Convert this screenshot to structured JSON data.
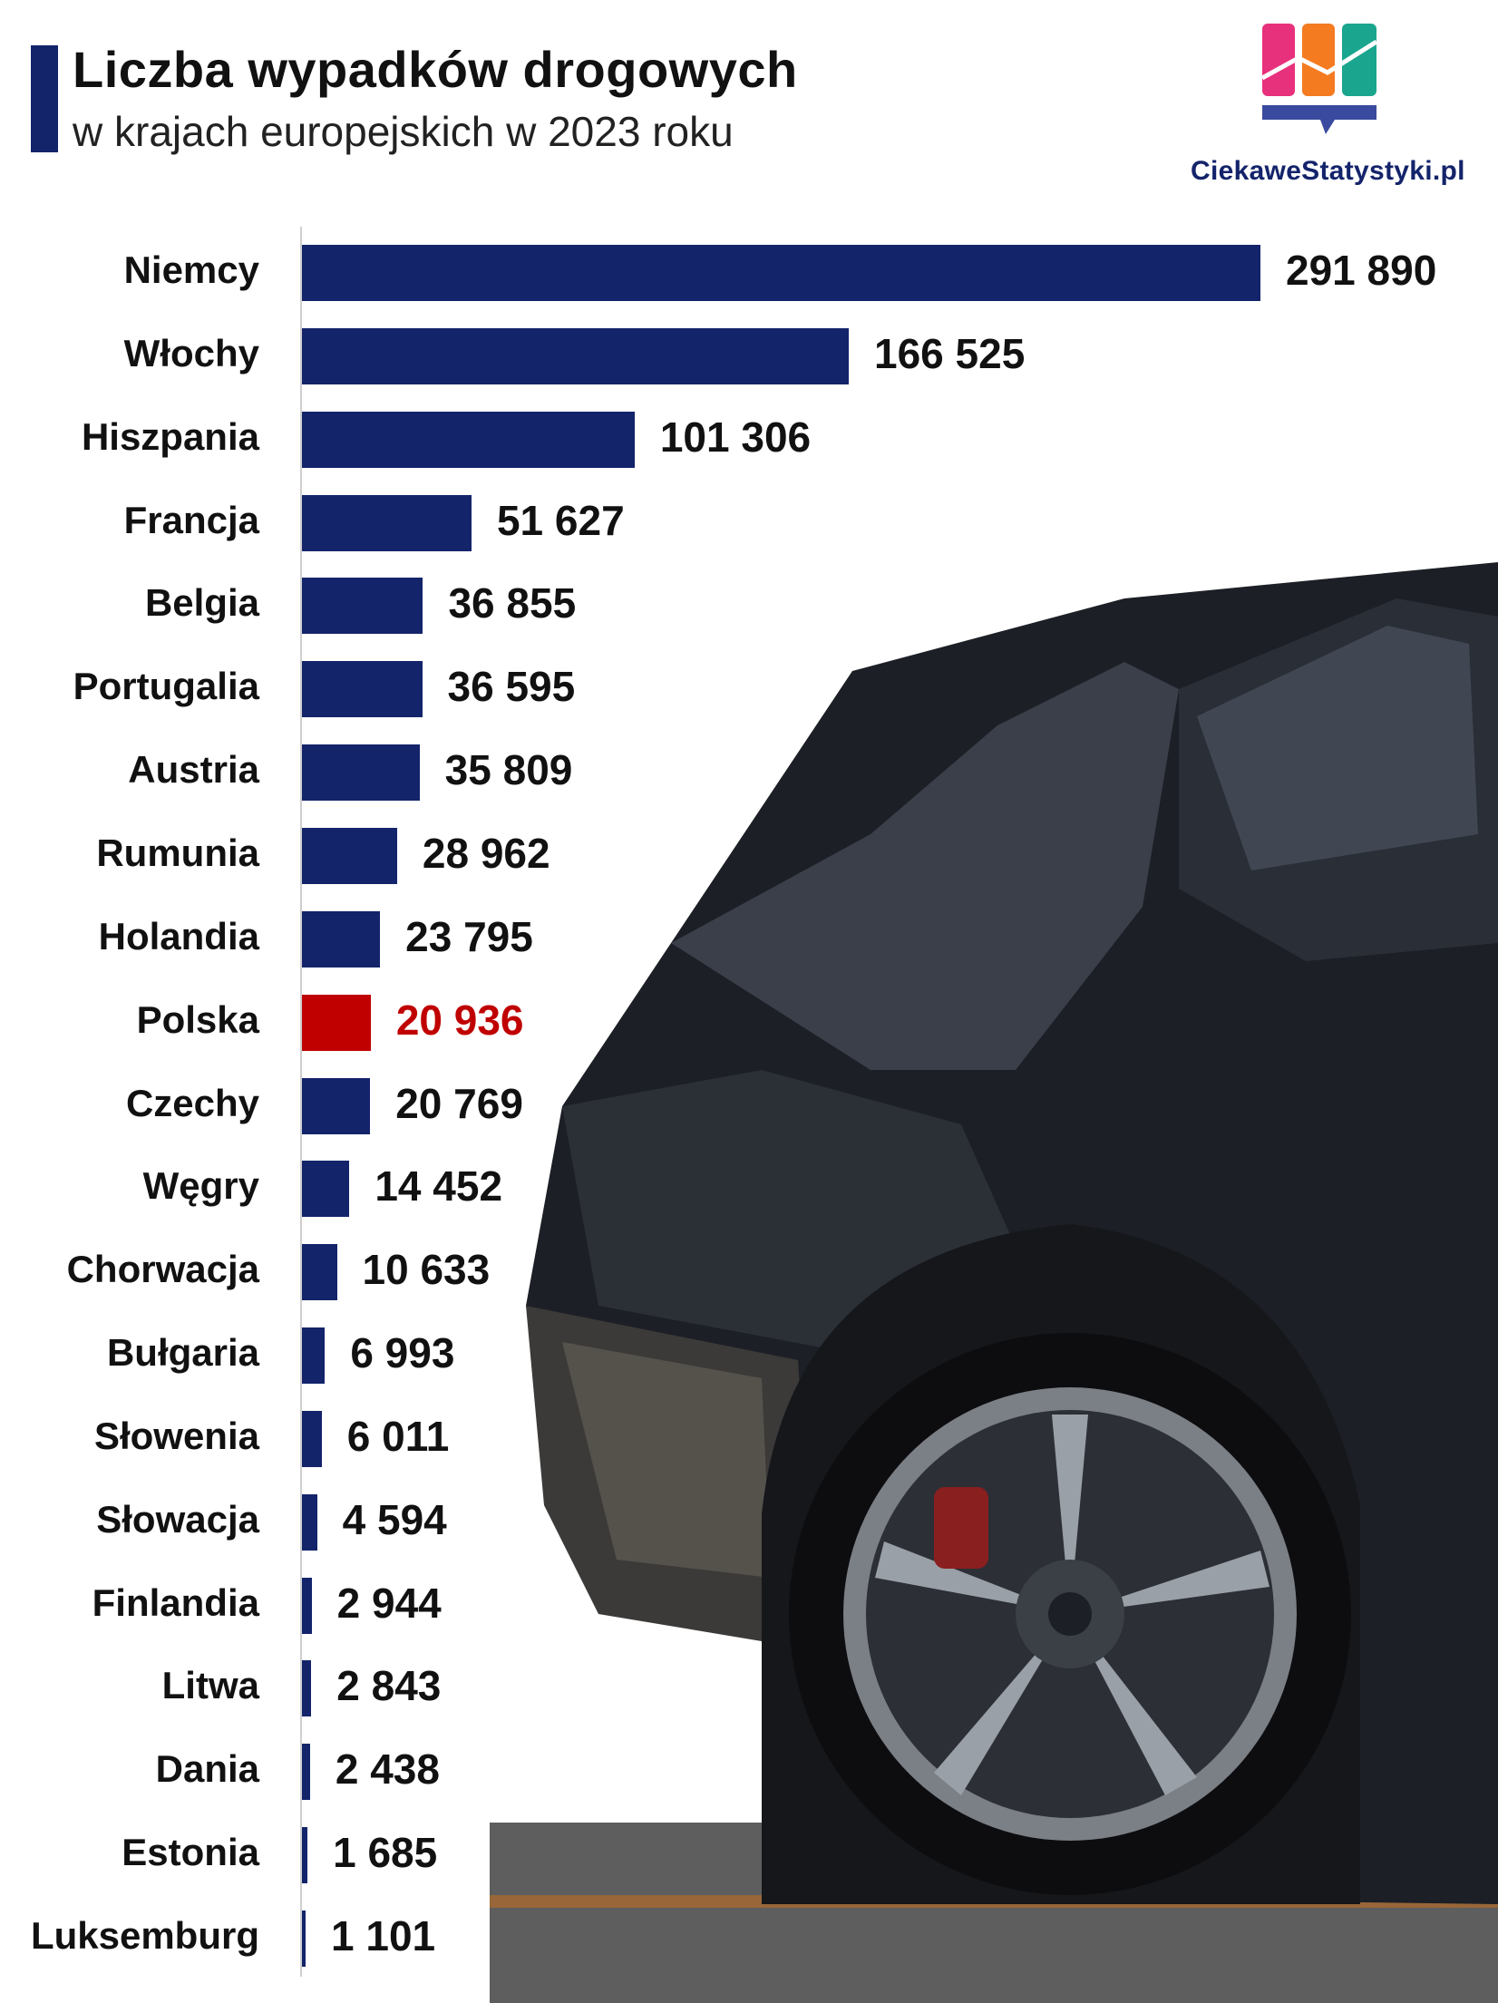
{
  "header": {
    "title": "Liczba wypadków drogowych",
    "subtitle": "w krajach europejskich w 2023 roku"
  },
  "brand": {
    "name": "CiekaweStatystyki.pl",
    "logo_icon": "bar-chart-speech-bubble-icon",
    "logo_colors": [
      "#e8317c",
      "#f47b20",
      "#1aa58e",
      "#3a4a9e"
    ]
  },
  "colors": {
    "bar": "#14246b",
    "highlight": "#c00000"
  },
  "photo": {
    "icon": "damaged-car-photo"
  },
  "chart_data": {
    "type": "bar",
    "orientation": "horizontal",
    "categories": [
      "Niemcy",
      "Włochy",
      "Hiszpania",
      "Francja",
      "Belgia",
      "Portugalia",
      "Austria",
      "Rumunia",
      "Holandia",
      "Polska",
      "Czechy",
      "Węgry",
      "Chorwacja",
      "Bułgaria",
      "Słowenia",
      "Słowacja",
      "Finlandia",
      "Litwa",
      "Dania",
      "Estonia",
      "Luksemburg"
    ],
    "values": [
      291890,
      166525,
      101306,
      51627,
      36855,
      36595,
      35809,
      28962,
      23795,
      20936,
      20769,
      14452,
      10633,
      6993,
      6011,
      4594,
      2944,
      2843,
      2438,
      1685,
      1101
    ],
    "value_labels": [
      "291 890",
      "166 525",
      "101 306",
      "51 627",
      "36 855",
      "36 595",
      "35 809",
      "28 962",
      "23 795",
      "20 936",
      "20 769",
      "14 452",
      "10 633",
      "6 993",
      "6 011",
      "4 594",
      "2 944",
      "2 843",
      "2 438",
      "1 685",
      "1 101"
    ],
    "highlight": "Polska",
    "title": "Liczba wypadków drogowych",
    "subtitle": "w krajach europejskich w 2023 roku",
    "xlim": [
      0,
      291890
    ],
    "grid": false,
    "legend": "none"
  }
}
